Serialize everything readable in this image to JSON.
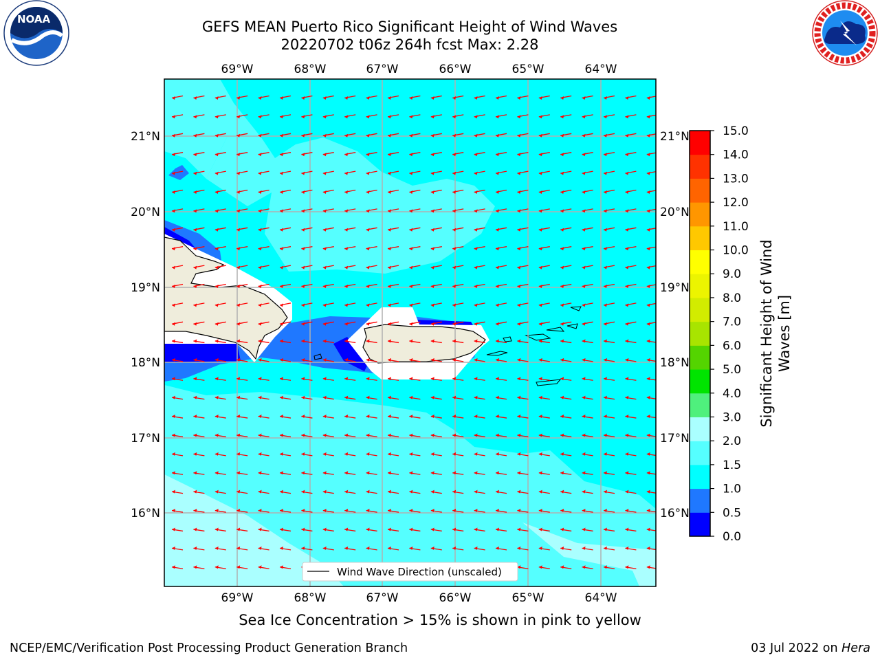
{
  "header": {
    "title_line1": "GEFS MEAN Puerto Rico Significant Height of Wind Waves",
    "title_line2": "20220702 t06z 264h fcst   Max: 2.28"
  },
  "logos": {
    "left": {
      "name": "noaa-logo",
      "text": "NOAA",
      "ring_text": "NATIONAL OCEANIC AND ATMOSPHERIC ADMINISTRATION · U.S. DEPARTMENT OF COMMERCE"
    },
    "right": {
      "name": "nws-logo",
      "ring_text": "NATIONAL WEATHER SERVICE"
    }
  },
  "map": {
    "lon_labels": [
      "69°W",
      "68°W",
      "67°W",
      "66°W",
      "65°W",
      "64°W"
    ],
    "lat_labels": [
      "21°N",
      "20°N",
      "19°N",
      "18°N",
      "17°N",
      "16°N"
    ],
    "legend_label": "Wind Wave Direction (unscaled)",
    "arrow_color": "#ff0000",
    "land_color": "#efeddc",
    "grid_color": "#b0b0b0"
  },
  "colorbar": {
    "title": "Significant Height of Wind Waves [m]",
    "ticks": [
      "0.0",
      "0.5",
      "1.0",
      "1.5",
      "2.0",
      "3.0",
      "4.0",
      "5.0",
      "6.0",
      "7.0",
      "8.0",
      "9.0",
      "10.0",
      "11.0",
      "12.0",
      "13.0",
      "14.0",
      "15.0"
    ],
    "colors": [
      "#0000ff",
      "#1f78ff",
      "#00ffff",
      "#55ffff",
      "#aaffff",
      "#4ff07d",
      "#00e400",
      "#54d400",
      "#a8e400",
      "#d2ec00",
      "#ecf400",
      "#ffff00",
      "#ffc800",
      "#ff9600",
      "#ff6400",
      "#ff3200",
      "#ff0000"
    ]
  },
  "footer": {
    "note": "Sea Ice Concentration > 15% is shown in pink to yellow",
    "credit": "NCEP/EMC/Verification Post Processing Product Generation Branch",
    "date": "03 Jul 2022 on ",
    "host": "Hera"
  }
}
